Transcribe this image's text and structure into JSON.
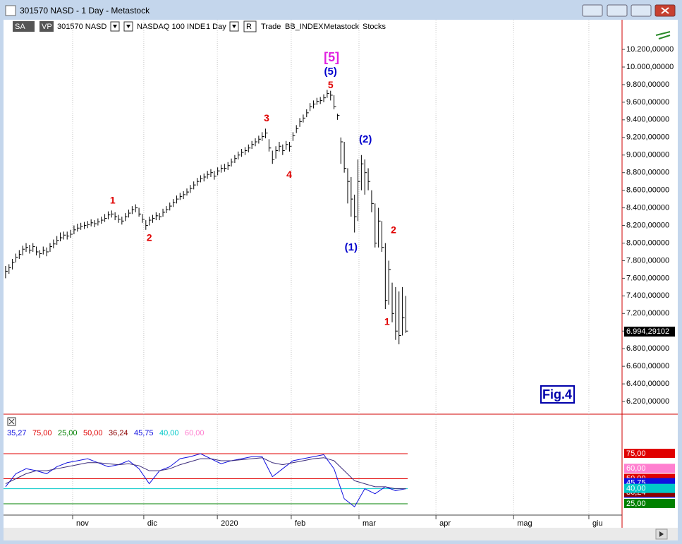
{
  "window": {
    "title": "301570 NASD - 1 Day - Metastock"
  },
  "toolbar": {
    "items": [
      "SA",
      "VP",
      "301570 NASD",
      "NASDAQ 100 INDE",
      "1 Day",
      "R",
      "Trade",
      "BB_INDEX",
      "Metastock",
      "Stocks"
    ]
  },
  "chart_data": [
    {
      "type": "ohlc",
      "color": "#000000",
      "xlim": [
        -0.6,
        180.2
      ],
      "xticks": [
        {
          "value": 19.6,
          "label": "nov"
        },
        {
          "value": 40.4,
          "label": "dic"
        },
        {
          "value": 61.9,
          "label": "2020"
        },
        {
          "value": 83.5,
          "label": "feb"
        },
        {
          "value": 103.3,
          "label": "mar"
        },
        {
          "value": 125.8,
          "label": "apr"
        },
        {
          "value": 148.5,
          "label": "mag"
        },
        {
          "value": 170.5,
          "label": "giu"
        }
      ],
      "grid": "x",
      "ylim": [
        6056,
        10537
      ],
      "yticks": [
        {
          "value": 6200,
          "label": "6.200,00000"
        },
        {
          "value": 6400,
          "label": "6.400,00000"
        },
        {
          "value": 6600,
          "label": "6.600,00000"
        },
        {
          "value": 6800,
          "label": "6.800,00000"
        },
        {
          "value": 7000,
          "label": "7.000,00000"
        },
        {
          "value": 7200,
          "label": "7.200,00000"
        },
        {
          "value": 7400,
          "label": "7.400,00000"
        },
        {
          "value": 7600,
          "label": "7.600,00000"
        },
        {
          "value": 7800,
          "label": "7.800,00000"
        },
        {
          "value": 8000,
          "label": "8.000,00000"
        },
        {
          "value": 8200,
          "label": "8.200,00000"
        },
        {
          "value": 8400,
          "label": "8.400,00000"
        },
        {
          "value": 8600,
          "label": "8.600,00000"
        },
        {
          "value": 8800,
          "label": "8.800,00000"
        },
        {
          "value": 9000,
          "label": "9.000,00000"
        },
        {
          "value": 9200,
          "label": "9.200,00000"
        },
        {
          "value": 9400,
          "label": "9.400,00000"
        },
        {
          "value": 9600,
          "label": "9.600,00000"
        },
        {
          "value": 9800,
          "label": "9.800,00000"
        },
        {
          "value": 10000,
          "label": "10.000,00000"
        },
        {
          "value": 10200,
          "label": "10.200,00000"
        }
      ],
      "close": [
        7680,
        7720,
        7780,
        7840,
        7870,
        7930,
        7950,
        7920,
        7960,
        7900,
        7880,
        7920,
        7900,
        7960,
        7990,
        8030,
        8060,
        8090,
        8080,
        8100,
        8150,
        8170,
        8190,
        8200,
        8210,
        8230,
        8220,
        8240,
        8260,
        8280,
        8320,
        8330,
        8300,
        8270,
        8250,
        8300,
        8340,
        8380,
        8400,
        8330,
        8270,
        8200,
        8260,
        8280,
        8310,
        8300,
        8350,
        8380,
        8420,
        8460,
        8500,
        8530,
        8550,
        8580,
        8620,
        8660,
        8700,
        8730,
        8750,
        8780,
        8800,
        8760,
        8820,
        8850,
        8850,
        8880,
        8920,
        8960,
        9000,
        9030,
        9050,
        9080,
        9120,
        9150,
        9180,
        9210,
        9250,
        9080,
        8950,
        9050,
        9100,
        9050,
        9120,
        9100,
        9220,
        9300,
        9380,
        9420,
        9480,
        9550,
        9580,
        9610,
        9620,
        9650,
        9700,
        9680,
        9550,
        9450,
        9150,
        8850,
        8700,
        8500,
        8300,
        8700,
        8900,
        8800,
        8700,
        8450,
        8000,
        8250,
        7950,
        7350,
        7700,
        7200,
        7000,
        6950,
        7150,
        7000
      ],
      "high": [
        7740,
        7760,
        7820,
        7880,
        7920,
        7970,
        8000,
        7980,
        8000,
        7960,
        7920,
        7960,
        7950,
        8000,
        8040,
        8080,
        8120,
        8130,
        8130,
        8150,
        8200,
        8220,
        8230,
        8240,
        8250,
        8270,
        8260,
        8280,
        8300,
        8330,
        8360,
        8370,
        8350,
        8320,
        8300,
        8340,
        8380,
        8420,
        8440,
        8400,
        8330,
        8260,
        8300,
        8320,
        8350,
        8340,
        8390,
        8420,
        8460,
        8500,
        8540,
        8570,
        8590,
        8620,
        8660,
        8700,
        8740,
        8770,
        8790,
        8820,
        8840,
        8820,
        8860,
        8890,
        8900,
        8920,
        8960,
        9000,
        9040,
        9070,
        9090,
        9120,
        9160,
        9190,
        9220,
        9260,
        9300,
        9180,
        9050,
        9100,
        9150,
        9120,
        9160,
        9150,
        9260,
        9340,
        9420,
        9460,
        9520,
        9590,
        9620,
        9650,
        9660,
        9690,
        9740,
        9730,
        9680,
        9470,
        9200,
        9150,
        8850,
        8750,
        8550,
        8950,
        9000,
        8950,
        8850,
        8600,
        8450,
        8400,
        8250,
        8000,
        7800,
        7550,
        7500,
        7450,
        7500,
        7400
      ],
      "low": [
        7600,
        7650,
        7700,
        7780,
        7820,
        7860,
        7900,
        7880,
        7900,
        7860,
        7830,
        7870,
        7850,
        7900,
        7940,
        7980,
        8020,
        8040,
        8040,
        8060,
        8100,
        8130,
        8150,
        8160,
        8170,
        8190,
        8180,
        8200,
        8220,
        8240,
        8270,
        8290,
        8260,
        8230,
        8210,
        8250,
        8290,
        8330,
        8350,
        8300,
        8230,
        8150,
        8200,
        8230,
        8260,
        8260,
        8300,
        8340,
        8370,
        8410,
        8450,
        8490,
        8500,
        8540,
        8570,
        8610,
        8650,
        8690,
        8700,
        8730,
        8750,
        8720,
        8770,
        8800,
        8810,
        8830,
        8870,
        8910,
        8950,
        8980,
        9000,
        9030,
        9070,
        9100,
        9130,
        9160,
        9190,
        9040,
        8900,
        8960,
        9040,
        9000,
        9060,
        9040,
        9160,
        9250,
        9320,
        9370,
        9430,
        9500,
        9530,
        9570,
        9580,
        9600,
        9650,
        9620,
        9520,
        9400,
        8900,
        8800,
        8450,
        8300,
        8120,
        8250,
        8600,
        8550,
        8600,
        8350,
        7950,
        7950,
        7900,
        7250,
        7300,
        7100,
        6900,
        6850,
        6950,
        6980
      ],
      "last": {
        "value": 6994.29102,
        "label": "6.994,29102"
      },
      "annotations": [
        {
          "text": "[5]",
          "x": 95.3,
          "y": 10104,
          "color": "#e020e0"
        },
        {
          "text": "(5)",
          "x": 95,
          "y": 9943,
          "color": "#0000cc"
        },
        {
          "text": "5",
          "x": 95,
          "y": 9791,
          "color": "#e00000"
        },
        {
          "text": "3",
          "x": 76.3,
          "y": 9414,
          "color": "#e00000"
        },
        {
          "text": "4",
          "x": 82.9,
          "y": 8773,
          "color": "#e00000"
        },
        {
          "text": "1",
          "x": 31.3,
          "y": 8477,
          "color": "#e00000"
        },
        {
          "text": "2",
          "x": 42,
          "y": 8052,
          "color": "#e00000"
        },
        {
          "text": "(2)",
          "x": 105.2,
          "y": 9174,
          "color": "#0000cc"
        },
        {
          "text": "(1)",
          "x": 101,
          "y": 7948,
          "color": "#0000cc"
        },
        {
          "text": "2",
          "x": 113.4,
          "y": 8140,
          "color": "#e00000"
        },
        {
          "text": "1",
          "x": 111.5,
          "y": 7098,
          "color": "#e00000"
        }
      ],
      "badge": "Fig.4"
    },
    {
      "type": "line",
      "xlim": [
        -0.6,
        180.2
      ],
      "ylim": [
        13.7,
        101.8
      ],
      "x": [
        0,
        3,
        6,
        9,
        12,
        15,
        18,
        21,
        24,
        27,
        30,
        33,
        36,
        39,
        42,
        45,
        48,
        51,
        54,
        57,
        60,
        63,
        66,
        69,
        72,
        75,
        78,
        81,
        84,
        87,
        90,
        93,
        96,
        99,
        102,
        105,
        108,
        111,
        114,
        117
      ],
      "series": [
        {
          "color": "#1010e0",
          "values": [
            42,
            55,
            60,
            58,
            55,
            62,
            66,
            68,
            70,
            66,
            62,
            64,
            68,
            60,
            45,
            58,
            62,
            70,
            72,
            75,
            70,
            65,
            68,
            70,
            72,
            72,
            52,
            60,
            68,
            70,
            72,
            74,
            60,
            30,
            22,
            40,
            35,
            42,
            38,
            40
          ]
        },
        {
          "color": "#3a2a7a",
          "values": [
            45,
            50,
            55,
            58,
            58,
            60,
            62,
            64,
            66,
            66,
            65,
            64,
            65,
            63,
            58,
            58,
            60,
            64,
            67,
            70,
            70,
            68,
            68,
            69,
            70,
            71,
            66,
            64,
            66,
            68,
            70,
            71,
            68,
            58,
            48,
            45,
            42,
            42,
            40,
            40
          ]
        }
      ],
      "readouts": [
        {
          "label": "35,27",
          "value": 35.27,
          "color": "#1010e0",
          "line": false
        },
        {
          "label": "75,00",
          "value": 75,
          "color": "#e00000",
          "line": true
        },
        {
          "label": "25,00",
          "value": 25,
          "color": "#008000",
          "line": true
        },
        {
          "label": "50,00",
          "value": 50,
          "color": "#e00000",
          "line": true
        },
        {
          "label": "36,24",
          "value": 36.24,
          "color": "#8b0000",
          "line": false
        },
        {
          "label": "45,75",
          "value": 45.75,
          "color": "#1010e0",
          "line": false
        },
        {
          "label": "40,00",
          "value": 40,
          "color": "#00c8c8",
          "line": true
        },
        {
          "label": "60,00",
          "value": 60,
          "color": "#ff7fd0",
          "line": false
        }
      ]
    }
  ]
}
